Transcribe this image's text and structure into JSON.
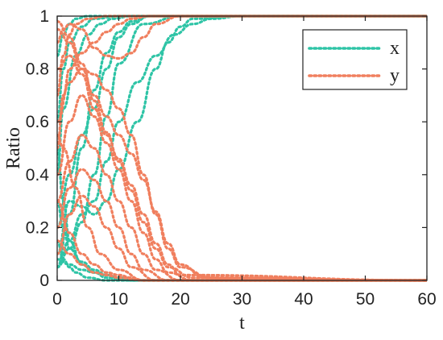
{
  "chart_data": {
    "type": "line",
    "xlabel": "t",
    "ylabel": "Ratio",
    "xlim": [
      0,
      60
    ],
    "ylim": [
      0,
      1
    ],
    "xticks": [
      0,
      10,
      20,
      30,
      40,
      50,
      60
    ],
    "yticks": [
      0,
      0.2,
      0.4,
      0.6,
      0.8,
      1
    ],
    "ytick_labels": [
      "0",
      "0.2",
      "0.4",
      "0.6",
      "0.8",
      "1"
    ],
    "grid": false,
    "legend_position": "top-right",
    "line_style": "dotted",
    "series": [
      {
        "name": "x",
        "color": "#2ec4a6",
        "trajectories": [
          {
            "x": [
              0,
              2,
              4,
              6,
              8,
              10,
              12,
              15,
              20,
              30,
              60
            ],
            "y": [
              0.05,
              0.25,
              0.5,
              0.72,
              0.86,
              0.94,
              0.98,
              1,
              1,
              1,
              1
            ]
          },
          {
            "x": [
              0,
              2,
              4,
              6,
              8,
              10,
              12,
              15,
              20,
              30,
              60
            ],
            "y": [
              0.2,
              0.4,
              0.55,
              0.65,
              0.8,
              0.92,
              0.97,
              1,
              1,
              1,
              1
            ]
          },
          {
            "x": [
              0,
              1,
              3,
              5,
              7,
              9,
              12,
              20,
              60
            ],
            "y": [
              0.4,
              0.65,
              0.85,
              0.93,
              0.97,
              0.99,
              1,
              1,
              1
            ]
          },
          {
            "x": [
              0,
              1,
              2,
              4,
              6,
              10,
              20,
              60
            ],
            "y": [
              0.6,
              0.8,
              0.9,
              0.96,
              0.99,
              1,
              1,
              1
            ]
          },
          {
            "x": [
              0,
              1,
              2,
              3,
              5,
              10,
              60
            ],
            "y": [
              0.85,
              0.93,
              0.97,
              0.99,
              1,
              1,
              1
            ]
          },
          {
            "x": [
              0,
              2,
              4,
              6,
              8,
              10,
              13,
              16,
              18,
              20,
              22,
              30,
              60
            ],
            "y": [
              0.1,
              0.3,
              0.28,
              0.25,
              0.3,
              0.42,
              0.6,
              0.8,
              0.9,
              0.96,
              0.99,
              1,
              1
            ]
          },
          {
            "x": [
              0,
              2,
              4,
              6,
              8,
              10,
              13,
              16,
              19,
              22,
              25,
              30,
              60
            ],
            "y": [
              0.05,
              0.15,
              0.25,
              0.3,
              0.45,
              0.6,
              0.75,
              0.85,
              0.93,
              0.97,
              0.99,
              1,
              1
            ]
          },
          {
            "x": [
              0,
              2,
              4,
              6,
              8,
              10,
              14,
              20,
              60
            ],
            "y": [
              0.05,
              0.12,
              0.22,
              0.4,
              0.62,
              0.82,
              0.97,
              1,
              1
            ]
          },
          {
            "x": [
              0,
              1,
              2,
              4,
              6,
              8,
              10,
              12,
              15,
              20,
              60
            ],
            "y": [
              0.3,
              0.2,
              0.12,
              0.07,
              0.04,
              0.02,
              0.01,
              0,
              0,
              0,
              0
            ]
          },
          {
            "x": [
              0,
              1,
              2,
              4,
              6,
              8,
              12,
              20,
              60
            ],
            "y": [
              0.5,
              0.3,
              0.15,
              0.06,
              0.03,
              0.01,
              0,
              0,
              0
            ]
          },
          {
            "x": [
              0,
              1,
              2,
              3,
              5,
              8,
              12,
              60
            ],
            "y": [
              0.15,
              0.08,
              0.05,
              0.03,
              0.01,
              0,
              0,
              0
            ]
          },
          {
            "x": [
              0,
              2,
              4,
              6,
              8,
              10,
              14,
              20,
              60
            ],
            "y": [
              0.08,
              0.06,
              0.04,
              0.03,
              0.02,
              0.01,
              0,
              0,
              0
            ]
          }
        ]
      },
      {
        "name": "y",
        "color": "#f07f5e",
        "trajectories": [
          {
            "x": [
              0,
              1,
              2,
              3,
              5,
              8,
              12,
              20,
              60
            ],
            "y": [
              0.7,
              0.85,
              0.93,
              0.97,
              0.99,
              1,
              1,
              1,
              1
            ]
          },
          {
            "x": [
              0,
              1,
              2,
              4,
              6,
              8,
              10,
              12,
              15,
              20,
              60
            ],
            "y": [
              0.5,
              0.7,
              0.8,
              0.86,
              0.9,
              0.94,
              0.97,
              0.99,
              1,
              1,
              1
            ]
          },
          {
            "x": [
              0,
              1,
              2,
              4,
              6,
              8,
              10,
              12,
              14,
              16,
              20,
              60
            ],
            "y": [
              0.9,
              0.95,
              0.97,
              0.95,
              0.88,
              0.85,
              0.84,
              0.86,
              0.92,
              0.97,
              1,
              1
            ]
          },
          {
            "x": [
              0,
              2,
              4,
              6,
              8,
              10,
              12,
              14,
              16,
              18,
              20,
              25,
              30,
              60
            ],
            "y": [
              0.6,
              0.75,
              0.8,
              0.78,
              0.72,
              0.65,
              0.55,
              0.4,
              0.25,
              0.12,
              0.05,
              0.01,
              0,
              0
            ]
          },
          {
            "x": [
              0,
              2,
              4,
              6,
              8,
              10,
              12,
              14,
              16,
              18,
              22,
              60
            ],
            "y": [
              0.4,
              0.6,
              0.7,
              0.62,
              0.52,
              0.42,
              0.3,
              0.18,
              0.08,
              0.03,
              0,
              0
            ]
          },
          {
            "x": [
              0,
              2,
              4,
              6,
              8,
              10,
              12,
              14,
              16,
              20,
              60
            ],
            "y": [
              0.3,
              0.45,
              0.55,
              0.5,
              0.4,
              0.3,
              0.2,
              0.1,
              0.04,
              0,
              0
            ]
          },
          {
            "x": [
              0,
              2,
              4,
              6,
              8,
              10,
              12,
              14,
              18,
              60
            ],
            "y": [
              0.2,
              0.35,
              0.42,
              0.38,
              0.3,
              0.2,
              0.1,
              0.04,
              0,
              0
            ]
          },
          {
            "x": [
              0,
              2,
              4,
              6,
              8,
              10,
              12,
              16,
              60
            ],
            "y": [
              0.1,
              0.25,
              0.32,
              0.28,
              0.2,
              0.12,
              0.05,
              0,
              0
            ]
          },
          {
            "x": [
              0,
              2,
              4,
              6,
              8,
              10,
              12,
              14,
              16,
              18,
              20,
              24,
              60
            ],
            "y": [
              0.95,
              0.9,
              0.8,
              0.7,
              0.62,
              0.55,
              0.48,
              0.38,
              0.26,
              0.14,
              0.06,
              0.01,
              0
            ]
          },
          {
            "x": [
              0,
              2,
              4,
              6,
              8,
              10,
              12,
              14,
              16,
              18,
              22,
              60
            ],
            "y": [
              0.98,
              0.92,
              0.82,
              0.68,
              0.56,
              0.45,
              0.34,
              0.22,
              0.12,
              0.05,
              0.01,
              0
            ]
          },
          {
            "x": [
              0,
              2,
              4,
              6,
              8,
              10,
              12,
              14,
              18,
              60
            ],
            "y": [
              0.3,
              0.18,
              0.1,
              0.06,
              0.03,
              0.02,
              0.01,
              0,
              0,
              0
            ]
          },
          {
            "x": [
              0,
              2,
              4,
              6,
              8,
              10,
              14,
              60
            ],
            "y": [
              0.15,
              0.1,
              0.06,
              0.03,
              0.02,
              0.01,
              0,
              0
            ]
          },
          {
            "x": [
              0,
              1,
              3,
              5,
              7,
              10,
              14,
              60
            ],
            "y": [
              0.55,
              0.5,
              0.35,
              0.2,
              0.1,
              0.04,
              0,
              0
            ]
          },
          {
            "x": [
              0,
              2,
              4,
              6,
              8,
              10,
              12,
              14,
              16,
              18,
              20,
              60
            ],
            "y": [
              0.8,
              0.85,
              0.78,
              0.65,
              0.55,
              0.46,
              0.36,
              0.25,
              0.14,
              0.06,
              0.02,
              0
            ]
          }
        ]
      }
    ]
  }
}
